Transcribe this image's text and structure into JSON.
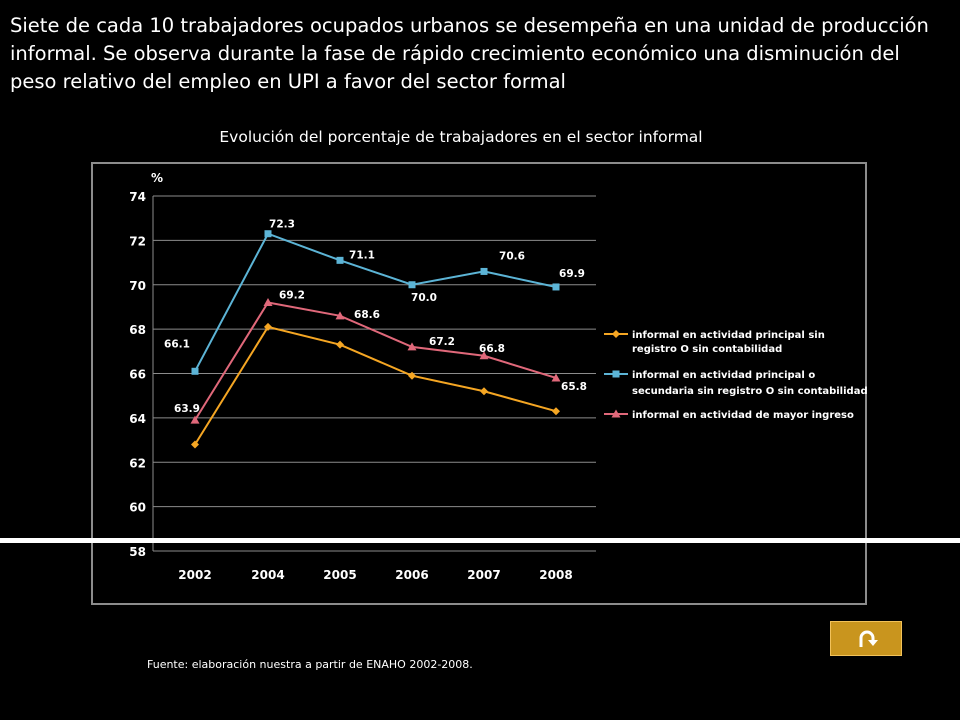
{
  "headline": "Siete de cada  10 trabajadores ocupados urbanos se desempeña en una unidad de producción informal.  Se observa durante la fase de rápido crecimiento económico una disminución del peso relativo del empleo en UPI a favor del sector formal",
  "source": "Fuente: elaboración nuestra a partir de ENAHO 2002-2008.",
  "colors": {
    "background": "#000000",
    "text": "#ffffff",
    "grid": "#8c8c8c",
    "button": "#c9951e"
  },
  "icons": {
    "return_button": "u-turn-arrow-icon"
  },
  "chart_data": {
    "type": "line",
    "title": "Evolución del porcentaje de trabajadores  en el sector informal",
    "ylabel": "%",
    "xlabel": "",
    "categories": [
      "2002",
      "2004",
      "2005",
      "2006",
      "2007",
      "2008"
    ],
    "ylim": [
      58,
      74
    ],
    "yticks": [
      58,
      60,
      62,
      64,
      66,
      68,
      70,
      72,
      74
    ],
    "grid": true,
    "legend_position": "right",
    "series": [
      {
        "name": "informal en actividad principal sin registro O sin contabilidad",
        "legend_lines": [
          "informal en actividad principal sin",
          "registro O sin contabilidad"
        ],
        "color": "#f5a623",
        "marker": "diamond",
        "values": [
          62.8,
          68.1,
          67.3,
          65.9,
          65.2,
          64.3
        ],
        "labels": [
          "",
          "",
          "",
          "",
          "",
          ""
        ]
      },
      {
        "name": "informal en actividad principal o secundaria sin registro O sin contabilidad",
        "legend_lines": [
          "informal en actividad principal o",
          "secundaria sin registro O sin contabilidad"
        ],
        "color": "#5cb4d6",
        "marker": "square",
        "values": [
          66.1,
          72.3,
          71.1,
          70.0,
          70.6,
          69.9
        ],
        "labels": [
          "66.1",
          "72.3",
          "71.1",
          "70.0",
          "70.6",
          "69.9"
        ]
      },
      {
        "name": "informal en actividad de mayor ingreso",
        "legend_lines": [
          "informal en actividad de mayor ingreso"
        ],
        "color": "#e0687a",
        "marker": "triangle",
        "values": [
          63.9,
          69.2,
          68.6,
          67.2,
          66.8,
          65.8
        ],
        "labels": [
          "63.9",
          "69.2",
          "68.6",
          "67.2",
          "66.8",
          "65.8"
        ]
      }
    ]
  }
}
